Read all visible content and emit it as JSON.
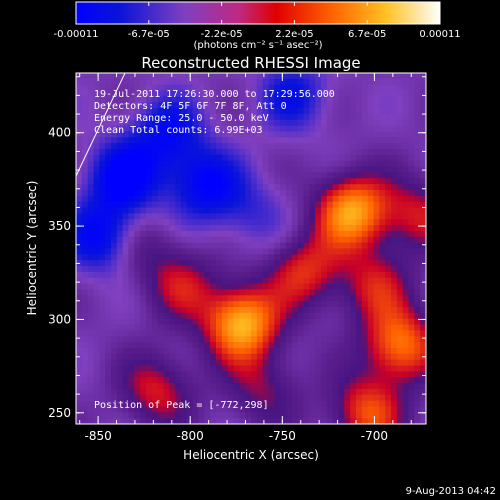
{
  "chart_data": {
    "type": "heatmap",
    "title": "Reconstructed RHESSI Image",
    "xlabel": "Heliocentric X (arcsec)",
    "ylabel": "Heliocentric Y (arcsec)",
    "xlim": [
      -862,
      -672
    ],
    "ylim": [
      244,
      432
    ],
    "x_ticks": [
      -850,
      -800,
      -750,
      -700
    ],
    "y_ticks": [
      250,
      300,
      350,
      400
    ],
    "colorbar": {
      "range": [
        -0.00011,
        0.00011
      ],
      "tick_labels": [
        "-0.00011",
        "-6.7e-05",
        "-2.2e-05",
        "2.2e-05",
        "6.7e-05",
        "0.00011"
      ],
      "units": "(photons cm⁻² s⁻¹ asec⁻²)"
    },
    "annotations": [
      "19-Jul-2011 17:26:30.000 to 17:29:56.000",
      "Detectors: 4F 5F 6F 7F 8F, Att 0",
      "Energy Range: 25.0 - 50.0 keV",
      "Clean    Total counts: 6.99E+03"
    ],
    "peak_label": "Position of Peak = [-772,298]",
    "sources": [
      {
        "x": -772,
        "y": 298,
        "value": 0.00011
      },
      {
        "x": -712,
        "y": 358,
        "value": 0.0001
      },
      {
        "x": -686,
        "y": 286,
        "value": 8.5e-05
      },
      {
        "x": -738,
        "y": 326,
        "value": 6e-05
      },
      {
        "x": -804,
        "y": 318,
        "value": 4.5e-05
      },
      {
        "x": -818,
        "y": 262,
        "value": 5.5e-05
      },
      {
        "x": -704,
        "y": 250,
        "value": 7e-05
      },
      {
        "x": -760,
        "y": 262,
        "value": 4e-05
      },
      {
        "x": -826,
        "y": 338,
        "value": 3e-05
      },
      {
        "x": -700,
        "y": 318,
        "value": 5e-05
      },
      {
        "x": -676,
        "y": 356,
        "value": 5e-05
      },
      {
        "x": -836,
        "y": 376,
        "value": -8e-05
      },
      {
        "x": -848,
        "y": 344,
        "value": -7e-05
      },
      {
        "x": -792,
        "y": 372,
        "value": -7e-05
      },
      {
        "x": -812,
        "y": 400,
        "value": -6e-05
      },
      {
        "x": -744,
        "y": 420,
        "value": -5e-05
      },
      {
        "x": -766,
        "y": 356,
        "value": -3e-05
      }
    ]
  },
  "footer": {
    "timestamp": "9-Aug-2013 04:42"
  }
}
